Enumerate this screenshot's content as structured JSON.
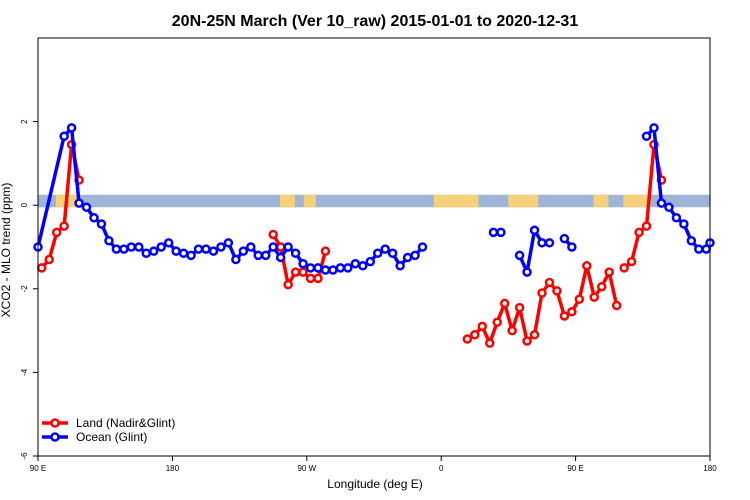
{
  "chart_data": {
    "type": "line",
    "title": "20N-25N March (Ver 10_raw)   2015-01-01 to 2020-12-31",
    "xlabel": "Longitude (deg E)",
    "ylabel": "XCO2 - MLO trend (ppm)",
    "xlim": [
      90,
      540
    ],
    "ylim": [
      -6,
      4
    ],
    "x_ticks": [
      {
        "value": 90,
        "label": "90 E"
      },
      {
        "value": 180,
        "label": "180"
      },
      {
        "value": 270,
        "label": "90 W"
      },
      {
        "value": 360,
        "label": "0"
      },
      {
        "value": 450,
        "label": "90 E"
      },
      {
        "value": 540,
        "label": "180"
      }
    ],
    "y_ticks": [
      {
        "value": -6,
        "label": "-6"
      },
      {
        "value": -4,
        "label": "-4"
      },
      {
        "value": -2,
        "label": "-2"
      },
      {
        "value": 0,
        "label": "0"
      },
      {
        "value": 2,
        "label": "2"
      }
    ],
    "land_mask_band": {
      "y_range": [
        -0.05,
        0.25
      ],
      "ocean_color": "#a0b4d8",
      "land_color": "#f5d27a"
    },
    "series": [
      {
        "name": "Land (Nadir&Glint)",
        "color": "#ff0000",
        "segments": [
          {
            "x": [
              92.5,
              97.5,
              102.5,
              107.5,
              112.5,
              117.5
            ],
            "y": [
              -1.5,
              -1.3,
              -0.65,
              -0.5,
              1.45,
              0.6
            ]
          },
          {
            "x": [
              247.5,
              252.5,
              257.5,
              262.5,
              267.5,
              272.5,
              277.5,
              282.5
            ],
            "y": [
              -0.7,
              -1.0,
              -1.9,
              -1.6,
              -1.6,
              -1.75,
              -1.75,
              -1.1
            ]
          },
          {
            "x": [
              377.5,
              382.5,
              387.5,
              392.5,
              397.5,
              402.5,
              407.5,
              412.5,
              417.5,
              422.5,
              427.5,
              432.5,
              437.5,
              442.5,
              447.5,
              452.5,
              457.5,
              462.5,
              467.5,
              472.5,
              477.5
            ],
            "y": [
              -3.2,
              -3.1,
              -2.9,
              -3.3,
              -2.8,
              -2.35,
              -3.0,
              -2.45,
              -3.25,
              -3.1,
              -2.1,
              -1.85,
              -2.05,
              -2.65,
              -2.55,
              -2.25,
              -1.45,
              -2.2,
              -1.95,
              -1.6,
              -2.4
            ]
          },
          {
            "x": [
              482.5,
              487.5,
              492.5,
              497.5,
              502.5,
              507.5
            ],
            "y": [
              -1.5,
              -1.35,
              -0.65,
              -0.5,
              1.45,
              0.6
            ]
          }
        ]
      },
      {
        "name": "Ocean (Glint)",
        "color": "#0000ff",
        "segments": [
          {
            "x": [
              90,
              107.5,
              112.5,
              117.5,
              122.5,
              127.5,
              132.5,
              137.5,
              142.5,
              147.5,
              152.5,
              157.5,
              162.5,
              167.5,
              172.5,
              177.5,
              182.5,
              187.5,
              192.5,
              197.5,
              202.5,
              207.5,
              212.5,
              217.5,
              222.5,
              227.5,
              232.5,
              237.5,
              242.5,
              247.5,
              252.5,
              257.5,
              262.5,
              267.5,
              272.5,
              277.5,
              282.5,
              287.5,
              292.5,
              297.5,
              302.5,
              307.5,
              312.5,
              317.5,
              322.5
            ],
            "y": [
              -1.0,
              1.65,
              1.85,
              0.05,
              -0.05,
              -0.3,
              -0.45,
              -0.85,
              -1.05,
              -1.05,
              -1.0,
              -1.0,
              -1.15,
              -1.1,
              -1.0,
              -0.9,
              -1.1,
              -1.15,
              -1.2,
              -1.05,
              -1.05,
              -1.1,
              -1.0,
              -0.9,
              -1.3,
              -1.1,
              -1.0,
              -1.2,
              -1.2,
              -1.0,
              -1.25,
              -1.0,
              -1.15,
              -1.4,
              -1.5,
              -1.5,
              -1.55,
              -1.55,
              -1.5,
              -1.5,
              -1.4,
              -1.45,
              -1.35,
              -1.15,
              -1.05
            ]
          },
          {
            "x": [
              327.5,
              332.5,
              337.5,
              342.5,
              347.5
            ],
            "y": [
              -1.15,
              -1.45,
              -1.25,
              -1.2,
              -1.0
            ]
          },
          {
            "x": [
              395,
              400
            ],
            "y": [
              -0.65,
              -0.65
            ]
          },
          {
            "x": [
              412.5,
              417.5,
              422.5,
              427.5,
              432.5
            ],
            "y": [
              -1.2,
              -1.6,
              -0.6,
              -0.9,
              -0.9
            ]
          },
          {
            "x": [
              442.5,
              447.5
            ],
            "y": [
              -0.8,
              -1.0
            ]
          },
          {
            "x": [
              497.5,
              502.5,
              507.5,
              512.5,
              517.5,
              522.5,
              527.5,
              532.5,
              537.5,
              540
            ],
            "y": [
              1.65,
              1.85,
              0.05,
              -0.05,
              -0.3,
              -0.45,
              -0.85,
              -1.05,
              -1.05,
              -0.9
            ]
          }
        ]
      }
    ],
    "legend": {
      "position": "bottom-left",
      "entries": [
        "Land (Nadir&Glint)",
        "Ocean (Glint)"
      ]
    }
  }
}
